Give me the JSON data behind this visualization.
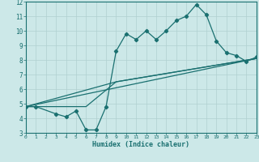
{
  "xlabel": "Humidex (Indice chaleur)",
  "xlim": [
    0,
    23
  ],
  "ylim": [
    3,
    12
  ],
  "xticks": [
    0,
    1,
    2,
    3,
    4,
    5,
    6,
    7,
    8,
    9,
    10,
    11,
    12,
    13,
    14,
    15,
    16,
    17,
    18,
    19,
    20,
    21,
    22,
    23
  ],
  "yticks": [
    3,
    4,
    5,
    6,
    7,
    8,
    9,
    10,
    11,
    12
  ],
  "bg_color": "#cce8e8",
  "line_color": "#1a7070",
  "grid_color": "#b0d0d0",
  "series1_x": [
    0,
    1,
    3,
    4,
    5,
    6,
    7,
    8,
    9,
    10,
    11,
    12,
    13,
    14,
    15,
    16,
    17,
    18,
    19,
    20,
    21,
    22,
    23
  ],
  "series1_y": [
    4.8,
    4.8,
    4.3,
    4.1,
    4.5,
    3.2,
    3.2,
    4.8,
    8.6,
    9.8,
    9.4,
    10.0,
    9.4,
    10.0,
    10.7,
    11.0,
    11.8,
    11.1,
    9.3,
    8.5,
    8.3,
    7.9,
    8.2
  ],
  "series2_x": [
    0,
    23
  ],
  "series2_y": [
    4.8,
    8.1
  ],
  "series3_x": [
    0,
    9,
    23
  ],
  "series3_y": [
    4.8,
    6.5,
    8.1
  ],
  "series4_x": [
    0,
    6,
    9,
    23
  ],
  "series4_y": [
    4.8,
    4.8,
    6.5,
    8.1
  ]
}
